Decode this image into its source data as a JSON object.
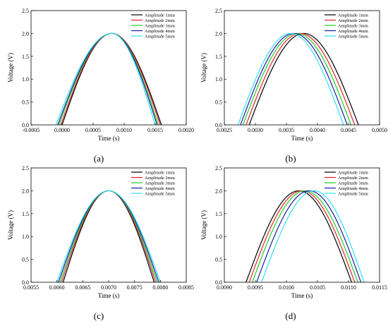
{
  "series_style": {
    "names": [
      "Amplitude 1mm",
      "Amplitude 2mm",
      "Amplitude 3mm",
      "Amplitude 4mm",
      "Amplitude 5mm"
    ],
    "colors": [
      "#000000",
      "#e0252d",
      "#22cc22",
      "#1a1aa6",
      "#33e0f0"
    ]
  },
  "chart_data": [
    {
      "type": "line",
      "panel_label": "(a)",
      "xlabel": "Time (s)",
      "ylabel": "Voltage  (V)",
      "xlim": [
        -0.0005,
        0.002
      ],
      "ylim": [
        0,
        2.5
      ],
      "xticks": [
        "-0.0005",
        "0.0000",
        "0.0005",
        "0.0010",
        "0.0015",
        "0.0020"
      ],
      "yticks": [
        "0.0",
        "0.5",
        "1.0",
        "1.5",
        "2.0",
        "2.5"
      ],
      "legend": "top-right",
      "series": [
        {
          "name": "Amplitude 1mm",
          "start": 0.0,
          "peak": 0.0008,
          "end": 0.0016,
          "ymax": 2.0
        },
        {
          "name": "Amplitude 2mm",
          "start": -2e-05,
          "peak": 0.0008,
          "end": 0.00158,
          "ymax": 2.0
        },
        {
          "name": "Amplitude 3mm",
          "start": -5e-05,
          "peak": 0.0008,
          "end": 0.00155,
          "ymax": 2.0
        },
        {
          "name": "Amplitude 4mm",
          "start": -7e-05,
          "peak": 0.0008,
          "end": 0.00153,
          "ymax": 2.0
        },
        {
          "name": "Amplitude 5mm",
          "start": -0.0001,
          "peak": 0.0008,
          "end": 0.0015,
          "ymax": 2.0
        }
      ]
    },
    {
      "type": "line",
      "panel_label": "(b)",
      "xlabel": "Time (s)",
      "ylabel": "Voltage  (V)",
      "xlim": [
        0.0025,
        0.005
      ],
      "ylim": [
        0,
        2.5
      ],
      "xticks": [
        "0.0025",
        "0.0030",
        "0.0035",
        "0.0040",
        "0.0045",
        "0.0050"
      ],
      "yticks": [
        "0.0",
        "0.5",
        "1.0",
        "1.5",
        "2.0",
        "2.5"
      ],
      "legend": "top-right",
      "series": [
        {
          "name": "Amplitude 1mm",
          "start": 0.0029,
          "peak": 0.00378,
          "end": 0.00466,
          "ymax": 2.0
        },
        {
          "name": "Amplitude 2mm",
          "start": 0.00285,
          "peak": 0.00372,
          "end": 0.0046,
          "ymax": 2.0
        },
        {
          "name": "Amplitude 3mm",
          "start": 0.0028,
          "peak": 0.00367,
          "end": 0.00454,
          "ymax": 2.0
        },
        {
          "name": "Amplitude 4mm",
          "start": 0.00276,
          "peak": 0.00362,
          "end": 0.00448,
          "ymax": 2.0
        },
        {
          "name": "Amplitude 5mm",
          "start": 0.00272,
          "peak": 0.00357,
          "end": 0.00442,
          "ymax": 2.0
        }
      ]
    },
    {
      "type": "line",
      "panel_label": "(c)",
      "xlabel": "Time (s)",
      "ylabel": "Voltage  (V)",
      "xlim": [
        0.0055,
        0.0085
      ],
      "ylim": [
        0,
        2.5
      ],
      "xticks": [
        "0.0055",
        "0.0060",
        "0.0065",
        "0.0070",
        "0.0075",
        "0.0080",
        "0.0085"
      ],
      "yticks": [
        "0.0",
        "0.5",
        "1.0",
        "1.5",
        "2.0",
        "2.5"
      ],
      "legend": "top-right",
      "series": [
        {
          "name": "Amplitude 1mm",
          "start": 0.00612,
          "peak": 0.007,
          "end": 0.00788,
          "ymax": 2.0
        },
        {
          "name": "Amplitude 2mm",
          "start": 0.00609,
          "peak": 0.007,
          "end": 0.00791,
          "ymax": 2.0
        },
        {
          "name": "Amplitude 3mm",
          "start": 0.00606,
          "peak": 0.007,
          "end": 0.00794,
          "ymax": 2.0
        },
        {
          "name": "Amplitude 4mm",
          "start": 0.00603,
          "peak": 0.007,
          "end": 0.00797,
          "ymax": 2.0
        },
        {
          "name": "Amplitude 5mm",
          "start": 0.006,
          "peak": 0.007,
          "end": 0.008,
          "ymax": 2.0
        }
      ]
    },
    {
      "type": "line",
      "panel_label": "(d)",
      "xlabel": "Time (s)",
      "ylabel": "Voltage  (V)",
      "xlim": [
        0.009,
        0.0115
      ],
      "ylim": [
        0,
        2.5
      ],
      "xticks": [
        "0.0090",
        "0.0095",
        "0.0100",
        "0.0105",
        "0.0110",
        "0.0115"
      ],
      "yticks": [
        "0.0",
        "0.5",
        "1.0",
        "1.5",
        "2.0",
        "2.5"
      ],
      "legend": "top-right",
      "series": [
        {
          "name": "Amplitude 1mm",
          "start": 0.00935,
          "peak": 0.0102,
          "end": 0.01105,
          "ymax": 2.0
        },
        {
          "name": "Amplitude 2mm",
          "start": 0.0094,
          "peak": 0.01025,
          "end": 0.0111,
          "ymax": 2.0
        },
        {
          "name": "Amplitude 3mm",
          "start": 0.00945,
          "peak": 0.0103,
          "end": 0.01115,
          "ymax": 2.0
        },
        {
          "name": "Amplitude 4mm",
          "start": 0.00952,
          "peak": 0.01037,
          "end": 0.0112,
          "ymax": 2.0
        },
        {
          "name": "Amplitude 5mm",
          "start": 0.0096,
          "peak": 0.01045,
          "end": 0.01125,
          "ymax": 2.0
        }
      ]
    }
  ]
}
